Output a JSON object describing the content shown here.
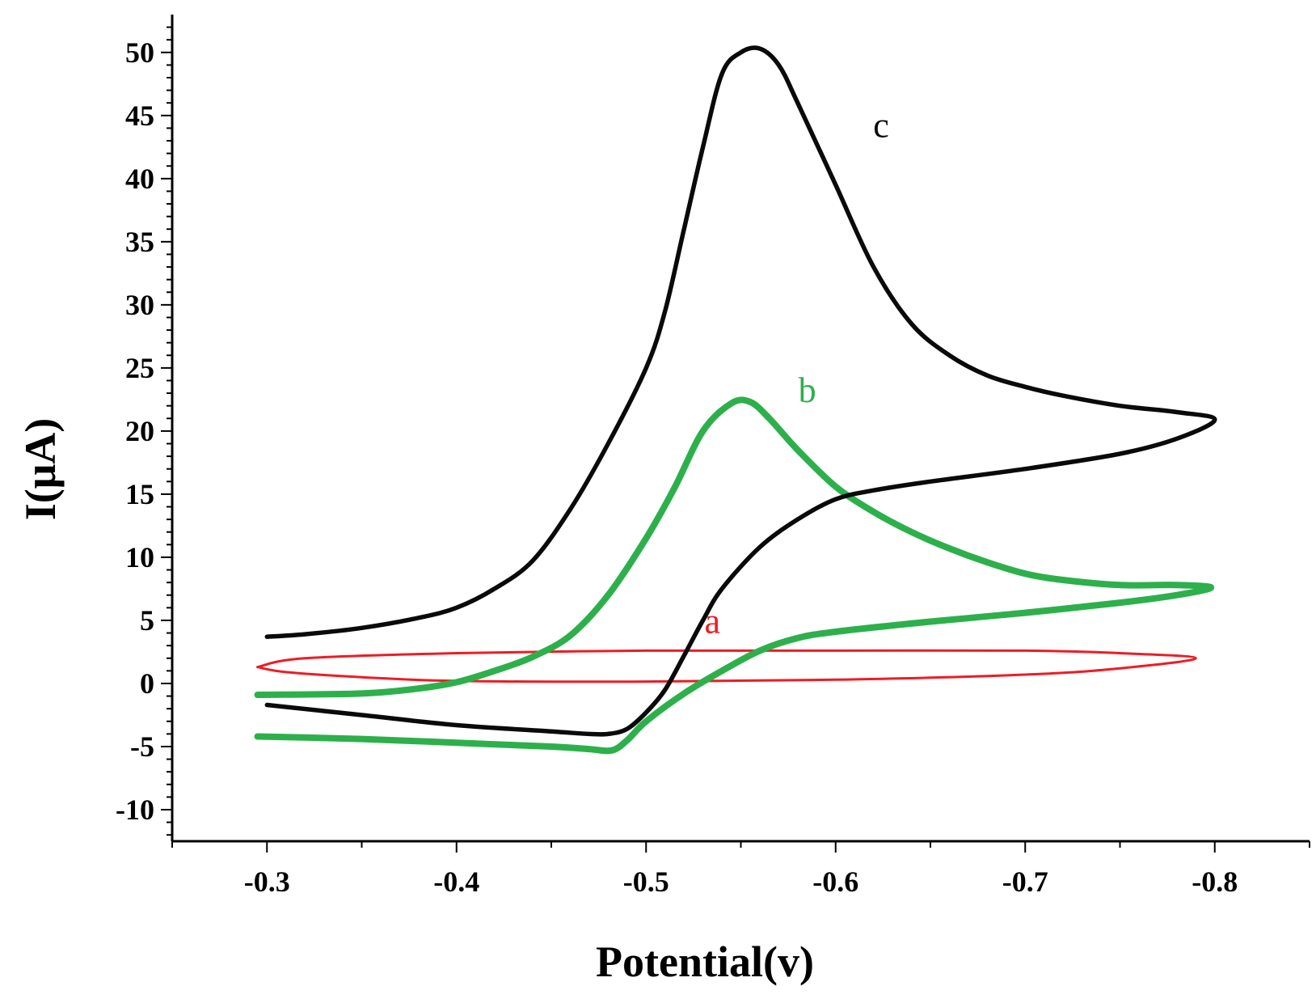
{
  "chart_data": {
    "type": "line",
    "title": "",
    "xlabel": "Potential(v)",
    "ylabel": "I(μA)",
    "xlim": [
      -0.25,
      -0.85
    ],
    "ylim": [
      -12.5,
      53
    ],
    "x_ticks": [
      -0.3,
      -0.4,
      -0.5,
      -0.6,
      -0.7,
      -0.8
    ],
    "x_tick_labels": [
      "-0.3",
      "-0.4",
      "-0.5",
      "-0.6",
      "-0.7",
      "-0.8"
    ],
    "y_ticks": [
      -10,
      -5,
      0,
      5,
      10,
      15,
      20,
      25,
      30,
      35,
      40,
      45,
      50
    ],
    "y_tick_labels": [
      "-10",
      "-5",
      "0",
      "5",
      "10",
      "15",
      "20",
      "25",
      "30",
      "35",
      "40",
      "45",
      "50"
    ],
    "grid": false,
    "legend": "none",
    "series": [
      {
        "name": "a",
        "label": "a",
        "color": "#ee1c24",
        "label_at": [
          -0.535,
          4.0
        ],
        "points": [
          [
            -0.295,
            1.3
          ],
          [
            -0.32,
            2.0
          ],
          [
            -0.4,
            2.4
          ],
          [
            -0.5,
            2.6
          ],
          [
            -0.6,
            2.6
          ],
          [
            -0.7,
            2.6
          ],
          [
            -0.75,
            2.4
          ],
          [
            -0.79,
            2.0
          ],
          [
            -0.75,
            1.2
          ],
          [
            -0.7,
            0.7
          ],
          [
            -0.6,
            0.3
          ],
          [
            -0.5,
            0.15
          ],
          [
            -0.4,
            0.2
          ],
          [
            -0.35,
            0.5
          ],
          [
            -0.31,
            0.9
          ],
          [
            -0.295,
            1.3
          ]
        ]
      },
      {
        "name": "b",
        "label": "b",
        "color": "#2db04b",
        "label_at": [
          -0.585,
          22.3
        ],
        "points": [
          [
            -0.295,
            -4.2
          ],
          [
            -0.35,
            -4.4
          ],
          [
            -0.4,
            -4.7
          ],
          [
            -0.45,
            -5.0
          ],
          [
            -0.47,
            -5.2
          ],
          [
            -0.482,
            -5.3
          ],
          [
            -0.49,
            -4.5
          ],
          [
            -0.5,
            -3.0
          ],
          [
            -0.52,
            -0.8
          ],
          [
            -0.54,
            1.0
          ],
          [
            -0.56,
            2.6
          ],
          [
            -0.58,
            3.6
          ],
          [
            -0.6,
            4.1
          ],
          [
            -0.65,
            4.9
          ],
          [
            -0.7,
            5.6
          ],
          [
            -0.75,
            6.4
          ],
          [
            -0.78,
            7.0
          ],
          [
            -0.798,
            7.6
          ],
          [
            -0.78,
            7.8
          ],
          [
            -0.75,
            7.8
          ],
          [
            -0.72,
            8.2
          ],
          [
            -0.7,
            8.7
          ],
          [
            -0.68,
            9.6
          ],
          [
            -0.66,
            10.7
          ],
          [
            -0.64,
            12.0
          ],
          [
            -0.62,
            13.6
          ],
          [
            -0.6,
            15.6
          ],
          [
            -0.58,
            18.5
          ],
          [
            -0.565,
            21.0
          ],
          [
            -0.555,
            22.3
          ],
          [
            -0.545,
            22.2
          ],
          [
            -0.53,
            20.0
          ],
          [
            -0.515,
            15.5
          ],
          [
            -0.5,
            11.5
          ],
          [
            -0.48,
            7.0
          ],
          [
            -0.46,
            3.8
          ],
          [
            -0.44,
            2.1
          ],
          [
            -0.42,
            1.0
          ],
          [
            -0.4,
            0.1
          ],
          [
            -0.38,
            -0.4
          ],
          [
            -0.35,
            -0.8
          ],
          [
            -0.295,
            -0.9
          ]
        ]
      },
      {
        "name": "c",
        "label": "c",
        "color": "#0a0a0a",
        "label_at": [
          -0.624,
          43.3
        ],
        "points": [
          [
            -0.3,
            -1.7
          ],
          [
            -0.35,
            -2.5
          ],
          [
            -0.4,
            -3.3
          ],
          [
            -0.45,
            -3.8
          ],
          [
            -0.47,
            -4.0
          ],
          [
            -0.48,
            -4.0
          ],
          [
            -0.49,
            -3.6
          ],
          [
            -0.5,
            -2.3
          ],
          [
            -0.51,
            -0.5
          ],
          [
            -0.52,
            2.2
          ],
          [
            -0.53,
            5.0
          ],
          [
            -0.54,
            7.5
          ],
          [
            -0.56,
            10.8
          ],
          [
            -0.58,
            13.0
          ],
          [
            -0.6,
            14.6
          ],
          [
            -0.62,
            15.3
          ],
          [
            -0.65,
            16.0
          ],
          [
            -0.7,
            17.0
          ],
          [
            -0.75,
            18.2
          ],
          [
            -0.78,
            19.4
          ],
          [
            -0.8,
            20.9
          ],
          [
            -0.78,
            21.5
          ],
          [
            -0.75,
            22.0
          ],
          [
            -0.72,
            22.8
          ],
          [
            -0.7,
            23.5
          ],
          [
            -0.68,
            24.4
          ],
          [
            -0.66,
            26.0
          ],
          [
            -0.64,
            28.5
          ],
          [
            -0.62,
            33.0
          ],
          [
            -0.6,
            39.5
          ],
          [
            -0.58,
            46.0
          ],
          [
            -0.57,
            49.0
          ],
          [
            -0.56,
            50.3
          ],
          [
            -0.55,
            50.0
          ],
          [
            -0.54,
            48.3
          ],
          [
            -0.53,
            42.5
          ],
          [
            -0.52,
            36.0
          ],
          [
            -0.51,
            29.5
          ],
          [
            -0.5,
            25.0
          ],
          [
            -0.48,
            19.0
          ],
          [
            -0.46,
            13.8
          ],
          [
            -0.44,
            9.7
          ],
          [
            -0.42,
            7.5
          ],
          [
            -0.4,
            6.0
          ],
          [
            -0.38,
            5.2
          ],
          [
            -0.35,
            4.4
          ],
          [
            -0.32,
            3.9
          ],
          [
            -0.3,
            3.7
          ]
        ]
      }
    ]
  }
}
